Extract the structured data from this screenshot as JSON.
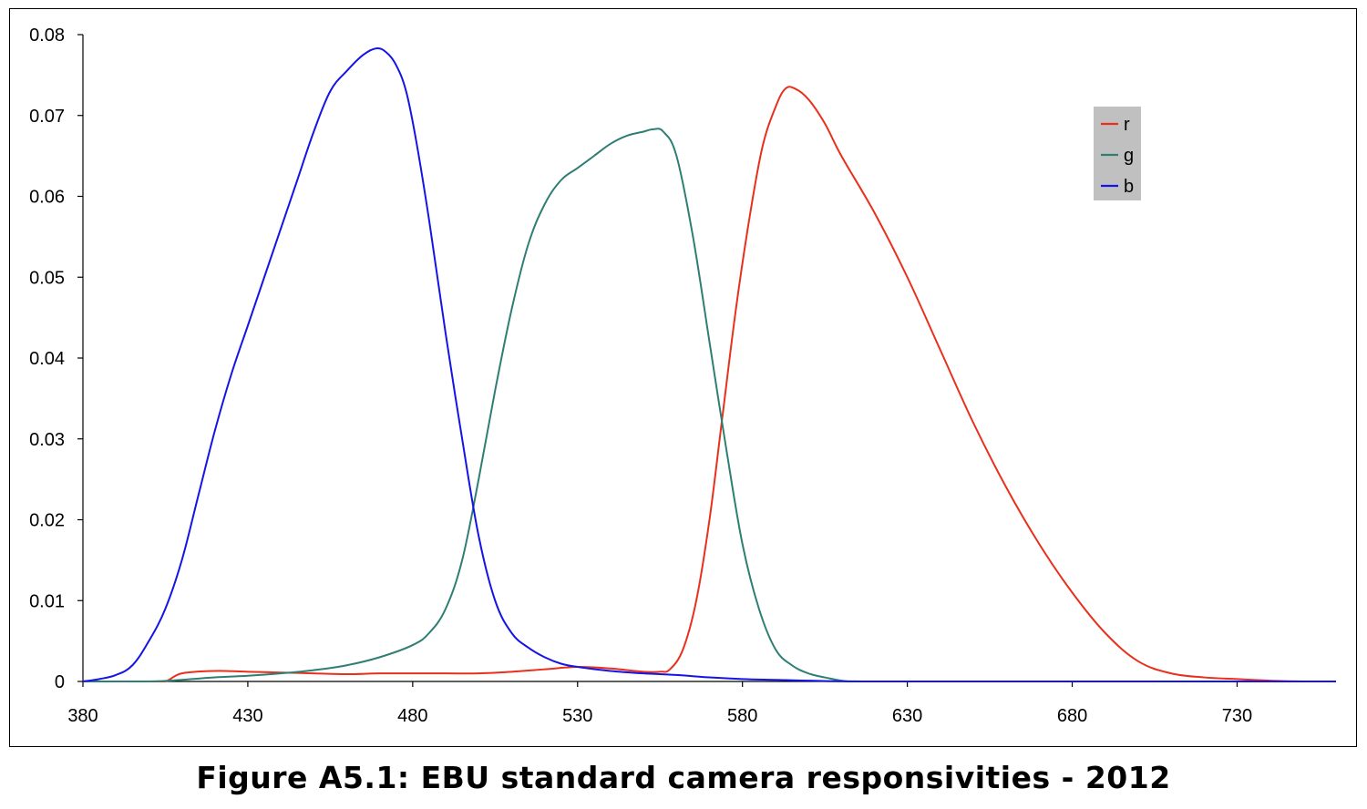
{
  "caption": "Figure A5.1: EBU standard camera responsivities - 2012",
  "chart_data": {
    "type": "line",
    "title": "",
    "xlabel": "",
    "ylabel": "",
    "xlim": [
      380,
      760
    ],
    "ylim": [
      0,
      0.08
    ],
    "x_ticks": [
      380,
      430,
      480,
      530,
      580,
      630,
      680,
      730
    ],
    "x_tick_labels": [
      "380",
      "430",
      "480",
      "530",
      "580",
      "630",
      "680",
      "730"
    ],
    "y_ticks": [
      0,
      0.01,
      0.02,
      0.03,
      0.04,
      0.05,
      0.06,
      0.07,
      0.08
    ],
    "y_tick_labels": [
      "0",
      "0.01",
      "0.02",
      "0.03",
      "0.04",
      "0.05",
      "0.06",
      "0.07",
      "0.08"
    ],
    "grid": false,
    "legend_position": "top-right",
    "series": [
      {
        "name": "r",
        "color": "#e8301c",
        "points": [
          [
            380,
            0
          ],
          [
            400,
            0
          ],
          [
            405,
            0
          ],
          [
            410,
            0.001
          ],
          [
            420,
            0.0013
          ],
          [
            430,
            0.0012
          ],
          [
            440,
            0.0011
          ],
          [
            450,
            0.001
          ],
          [
            460,
            0.0009
          ],
          [
            470,
            0.001
          ],
          [
            480,
            0.001
          ],
          [
            490,
            0.001
          ],
          [
            500,
            0.001
          ],
          [
            510,
            0.0012
          ],
          [
            520,
            0.0015
          ],
          [
            530,
            0.0018
          ],
          [
            540,
            0.0016
          ],
          [
            550,
            0.0012
          ],
          [
            555,
            0.0012
          ],
          [
            558,
            0.0015
          ],
          [
            562,
            0.004
          ],
          [
            566,
            0.01
          ],
          [
            570,
            0.02
          ],
          [
            574,
            0.033
          ],
          [
            578,
            0.046
          ],
          [
            582,
            0.057
          ],
          [
            586,
            0.066
          ],
          [
            590,
            0.071
          ],
          [
            593,
            0.0733
          ],
          [
            596,
            0.0733
          ],
          [
            600,
            0.072
          ],
          [
            605,
            0.069
          ],
          [
            610,
            0.065
          ],
          [
            620,
            0.058
          ],
          [
            630,
            0.05
          ],
          [
            640,
            0.041
          ],
          [
            650,
            0.032
          ],
          [
            660,
            0.024
          ],
          [
            670,
            0.017
          ],
          [
            680,
            0.011
          ],
          [
            690,
            0.006
          ],
          [
            700,
            0.0025
          ],
          [
            710,
            0.001
          ],
          [
            720,
            0.0005
          ],
          [
            730,
            0.0003
          ],
          [
            740,
            0.0001
          ],
          [
            750,
            0
          ],
          [
            760,
            0
          ]
        ]
      },
      {
        "name": "g",
        "color": "#2e7e74",
        "points": [
          [
            380,
            0
          ],
          [
            400,
            0
          ],
          [
            410,
            0.0002
          ],
          [
            420,
            0.0005
          ],
          [
            430,
            0.0007
          ],
          [
            440,
            0.001
          ],
          [
            450,
            0.0014
          ],
          [
            460,
            0.002
          ],
          [
            470,
            0.003
          ],
          [
            480,
            0.0045
          ],
          [
            485,
            0.006
          ],
          [
            490,
            0.009
          ],
          [
            495,
            0.015
          ],
          [
            500,
            0.025
          ],
          [
            505,
            0.036
          ],
          [
            510,
            0.046
          ],
          [
            515,
            0.054
          ],
          [
            520,
            0.059
          ],
          [
            525,
            0.062
          ],
          [
            530,
            0.0635
          ],
          [
            535,
            0.065
          ],
          [
            540,
            0.0665
          ],
          [
            545,
            0.0675
          ],
          [
            550,
            0.068
          ],
          [
            553,
            0.0683
          ],
          [
            556,
            0.068
          ],
          [
            560,
            0.065
          ],
          [
            565,
            0.055
          ],
          [
            570,
            0.042
          ],
          [
            575,
            0.029
          ],
          [
            580,
            0.017
          ],
          [
            585,
            0.009
          ],
          [
            590,
            0.004
          ],
          [
            595,
            0.002
          ],
          [
            600,
            0.001
          ],
          [
            605,
            0.0005
          ],
          [
            612,
            0
          ],
          [
            620,
            0
          ],
          [
            650,
            0
          ],
          [
            700,
            0
          ],
          [
            760,
            0
          ]
        ]
      },
      {
        "name": "b",
        "color": "#1414e6",
        "points": [
          [
            380,
            0
          ],
          [
            385,
            0.0003
          ],
          [
            390,
            0.0008
          ],
          [
            395,
            0.002
          ],
          [
            400,
            0.005
          ],
          [
            405,
            0.009
          ],
          [
            410,
            0.015
          ],
          [
            415,
            0.023
          ],
          [
            420,
            0.031
          ],
          [
            425,
            0.038
          ],
          [
            430,
            0.044
          ],
          [
            435,
            0.05
          ],
          [
            440,
            0.056
          ],
          [
            445,
            0.062
          ],
          [
            450,
            0.068
          ],
          [
            455,
            0.073
          ],
          [
            460,
            0.0755
          ],
          [
            465,
            0.0775
          ],
          [
            469,
            0.0783
          ],
          [
            472,
            0.0778
          ],
          [
            475,
            0.0762
          ],
          [
            478,
            0.073
          ],
          [
            481,
            0.067
          ],
          [
            485,
            0.057
          ],
          [
            490,
            0.043
          ],
          [
            495,
            0.03
          ],
          [
            500,
            0.018
          ],
          [
            505,
            0.01
          ],
          [
            510,
            0.006
          ],
          [
            515,
            0.0042
          ],
          [
            520,
            0.003
          ],
          [
            525,
            0.0022
          ],
          [
            530,
            0.0018
          ],
          [
            540,
            0.0013
          ],
          [
            550,
            0.001
          ],
          [
            560,
            0.0008
          ],
          [
            570,
            0.0005
          ],
          [
            580,
            0.0003
          ],
          [
            590,
            0.0002
          ],
          [
            600,
            0.0001
          ],
          [
            620,
            0
          ],
          [
            700,
            0
          ],
          [
            760,
            0
          ]
        ]
      }
    ]
  }
}
